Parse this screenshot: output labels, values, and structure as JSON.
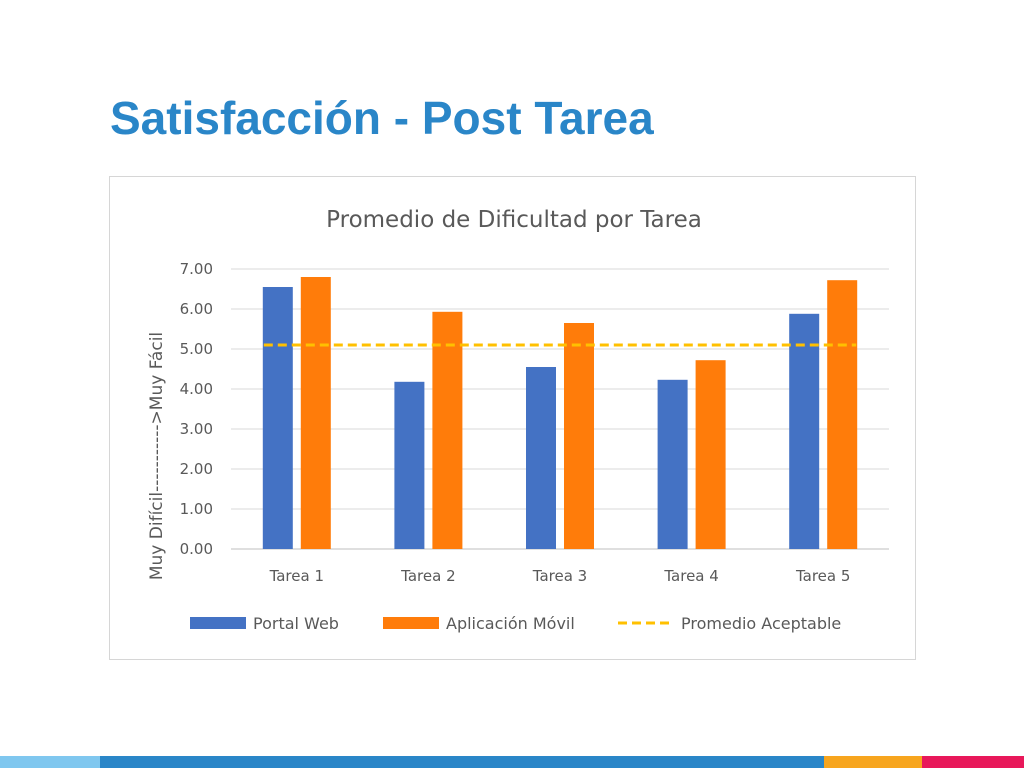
{
  "slide": {
    "title": "Satisfacción - Post Tarea"
  },
  "chart_data": {
    "type": "bar",
    "title": "Promedio de Dificultad por Tarea",
    "xlabel": "",
    "ylabel": "Muy Difícil----------->Muy Fácil",
    "ylim": [
      0,
      7
    ],
    "yticks": [
      "0.00",
      "1.00",
      "2.00",
      "3.00",
      "4.00",
      "5.00",
      "6.00",
      "7.00"
    ],
    "categories": [
      "Tarea 1",
      "Tarea 2",
      "Tarea 3",
      "Tarea 4",
      "Tarea 5"
    ],
    "series": [
      {
        "name": "Portal Web",
        "color": "#4472c4",
        "values": [
          6.55,
          4.18,
          4.55,
          4.23,
          5.88
        ]
      },
      {
        "name": "Aplicación Móvil",
        "color": "#ff7c0a",
        "values": [
          6.8,
          5.93,
          5.65,
          4.72,
          6.72
        ]
      }
    ],
    "reference_line": {
      "name": "Promedio Aceptable",
      "value": 5.1,
      "color": "#ffc000",
      "style": "dashed"
    },
    "grid": true,
    "legend_position": "bottom"
  },
  "footer": {
    "stripe_colors": [
      "#7fc7ef",
      "#2a86c8",
      "#f7a51e",
      "#e8185a"
    ]
  }
}
